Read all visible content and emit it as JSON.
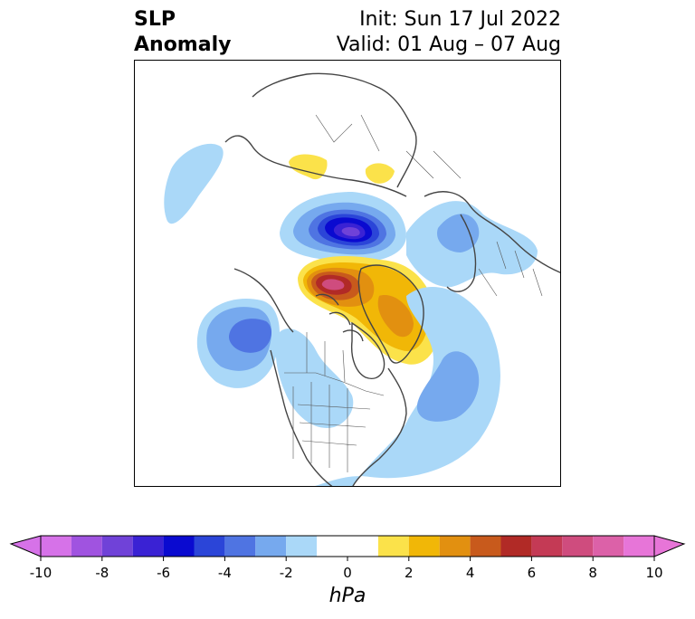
{
  "title": {
    "left_line1": "SLP",
    "left_line2": "Anomaly",
    "init": "Init: Sun 17 Jul 2022",
    "valid": "Valid: 01 Aug – 07 Aug"
  },
  "colorbar": {
    "unit": "hPa",
    "levels": [
      -10,
      -9,
      -8,
      -7,
      -6,
      -5,
      -4,
      -3,
      -2,
      -1,
      1,
      2,
      3,
      4,
      5,
      6,
      7,
      8,
      9,
      10
    ],
    "tick_values": [
      -10,
      -8,
      -6,
      -4,
      -2,
      0,
      2,
      4,
      6,
      8,
      10
    ],
    "tick_labels": [
      "-10",
      "-8",
      "-6",
      "-4",
      "-2",
      "0",
      "2",
      "4",
      "6",
      "8",
      "10"
    ],
    "colors": [
      "#d672e8",
      "#a053e0",
      "#7042d8",
      "#3a22d4",
      "#0a0ad0",
      "#2b45d8",
      "#4f74e2",
      "#76a9ee",
      "#aad8f8",
      "#ffffff",
      "#fbe24a",
      "#f1b707",
      "#e29010",
      "#c85a1c",
      "#b12a26",
      "#c43a55",
      "#cf4c7e",
      "#dc61a8",
      "#e775d8"
    ],
    "extend": "both"
  },
  "map": {
    "projection": "north-polar-stereographic",
    "region": "Northern Hemisphere / North America",
    "anomaly_features": [
      {
        "label": "negative anomaly over Arctic Ocean north of Siberia",
        "min_hPa": -7
      },
      {
        "label": "positive anomaly over Canadian Arctic Archipelago / Greenland",
        "max_hPa": 7
      },
      {
        "label": "negative anomaly over Gulf of Alaska",
        "min_hPa": -4
      },
      {
        "label": "negative anomaly over central North Atlantic",
        "min_hPa": -3
      },
      {
        "label": "negative anomaly over northern Europe",
        "min_hPa": -2
      },
      {
        "label": "positive anomalies over central Siberia",
        "max_hPa": 2
      }
    ]
  }
}
